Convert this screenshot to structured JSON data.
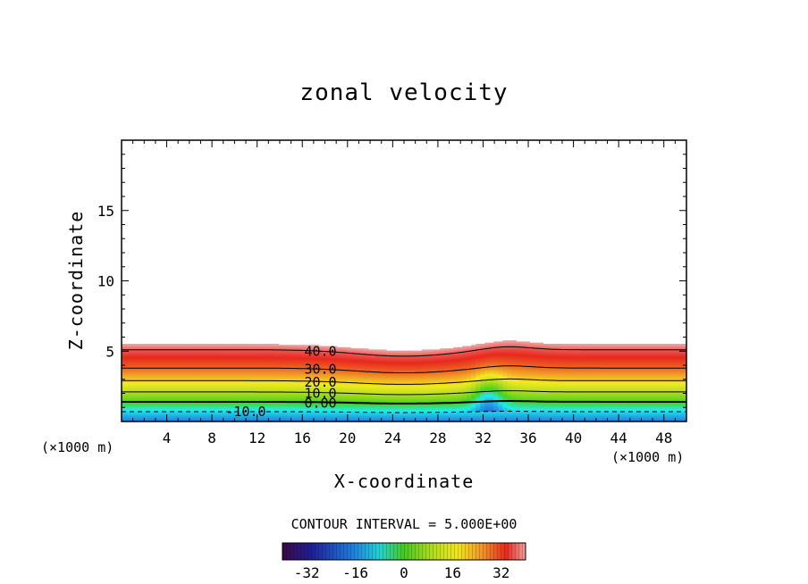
{
  "chart_data": {
    "type": "contour",
    "title": "zonal velocity",
    "xlabel": "X-coordinate",
    "ylabel": "Z-coordinate",
    "x_unit_note": "(×1000 m)",
    "x_unit_note_bottom": "(×1000 m)",
    "xlim": [
      0,
      50
    ],
    "ylim": [
      0,
      20
    ],
    "x_ticks": [
      "4",
      "8",
      "12",
      "16",
      "20",
      "24",
      "28",
      "32",
      "36",
      "40",
      "44",
      "48"
    ],
    "y_ticks": [
      "5",
      "10",
      "15"
    ],
    "contour_interval_text": "CONTOUR INTERVAL = 5.000E+00",
    "contour_labels": [
      {
        "text": "40.0",
        "x": 17.6,
        "z": 5.0
      },
      {
        "text": "30.0",
        "x": 17.6,
        "z": 3.7
      },
      {
        "text": "20.0",
        "x": 17.6,
        "z": 2.8
      },
      {
        "text": "10.0",
        "x": 17.6,
        "z": 2.0
      },
      {
        "text": "0.00",
        "x": 17.6,
        "z": 1.3
      },
      {
        "text": "-10.0",
        "x": 11.0,
        "z": 0.7
      }
    ],
    "colorbar": {
      "min": -40,
      "max": 40,
      "tick_labels": [
        "-32",
        "-16",
        "0",
        "16",
        "32"
      ],
      "tick_values": [
        -32,
        -16,
        0,
        16,
        32
      ]
    },
    "field_description_levels": [
      {
        "velocity": 40,
        "z": 5.1
      },
      {
        "velocity": 30,
        "z": 3.8
      },
      {
        "velocity": 20,
        "z": 2.9
      },
      {
        "velocity": 10,
        "z": 2.1
      },
      {
        "velocity": 0,
        "z": 1.4
      },
      {
        "velocity": -10,
        "z": 0.7
      }
    ],
    "colors": {
      "strong_positive": "#e8281e",
      "positive": "#f2ea1e",
      "zero": "#46d21e",
      "negative": "#23f0f0",
      "strong_negative": "#1e1e96"
    }
  }
}
